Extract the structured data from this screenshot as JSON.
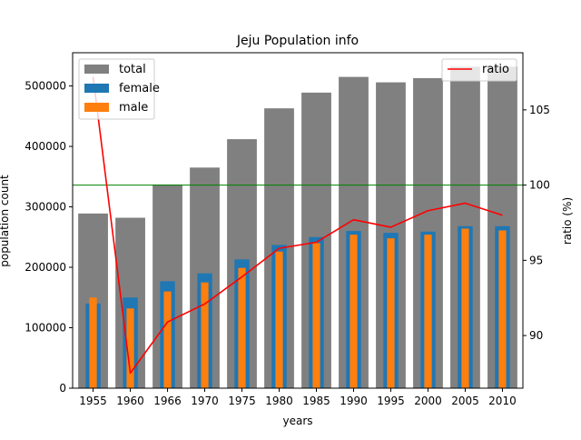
{
  "chart_data": {
    "type": "bar",
    "title": "Jeju Population info",
    "xlabel": "years",
    "ylabel": "population count",
    "y2label": "ratio (%)",
    "categories": [
      "1955",
      "1960",
      "1966",
      "1970",
      "1975",
      "1980",
      "1985",
      "1990",
      "1995",
      "2000",
      "2005",
      "2010"
    ],
    "ylim": [
      0,
      555000
    ],
    "y2lim": [
      86.5,
      108.8
    ],
    "yticks": [
      0,
      100000,
      200000,
      300000,
      400000,
      500000
    ],
    "y2ticks": [
      90,
      95,
      100,
      105
    ],
    "series": [
      {
        "name": "total",
        "kind": "bar",
        "color": "#808080",
        "values": [
          289000,
          282000,
          337000,
          365000,
          412000,
          463000,
          489000,
          515000,
          506000,
          513000,
          532000,
          532000
        ]
      },
      {
        "name": "female",
        "kind": "bar",
        "color": "#1f77b4",
        "values": [
          140000,
          150000,
          177000,
          190000,
          213000,
          237000,
          250000,
          260000,
          257000,
          259000,
          268000,
          268000
        ]
      },
      {
        "name": "male",
        "kind": "bar",
        "color": "#ff7f0e",
        "values": [
          150000,
          132000,
          160000,
          175000,
          199000,
          226000,
          240000,
          254000,
          248000,
          254000,
          264000,
          261000
        ]
      },
      {
        "name": "ratio",
        "kind": "line",
        "axis": "right",
        "color": "#ff0000",
        "values": [
          107.2,
          87.5,
          90.9,
          92.1,
          93.9,
          95.8,
          96.2,
          97.7,
          97.2,
          98.3,
          98.8,
          98.0
        ]
      }
    ],
    "reference_line": {
      "axis": "right",
      "value": 100,
      "color": "#008000"
    },
    "legend_left": [
      "total",
      "female",
      "male"
    ],
    "legend_right": [
      "ratio"
    ]
  }
}
